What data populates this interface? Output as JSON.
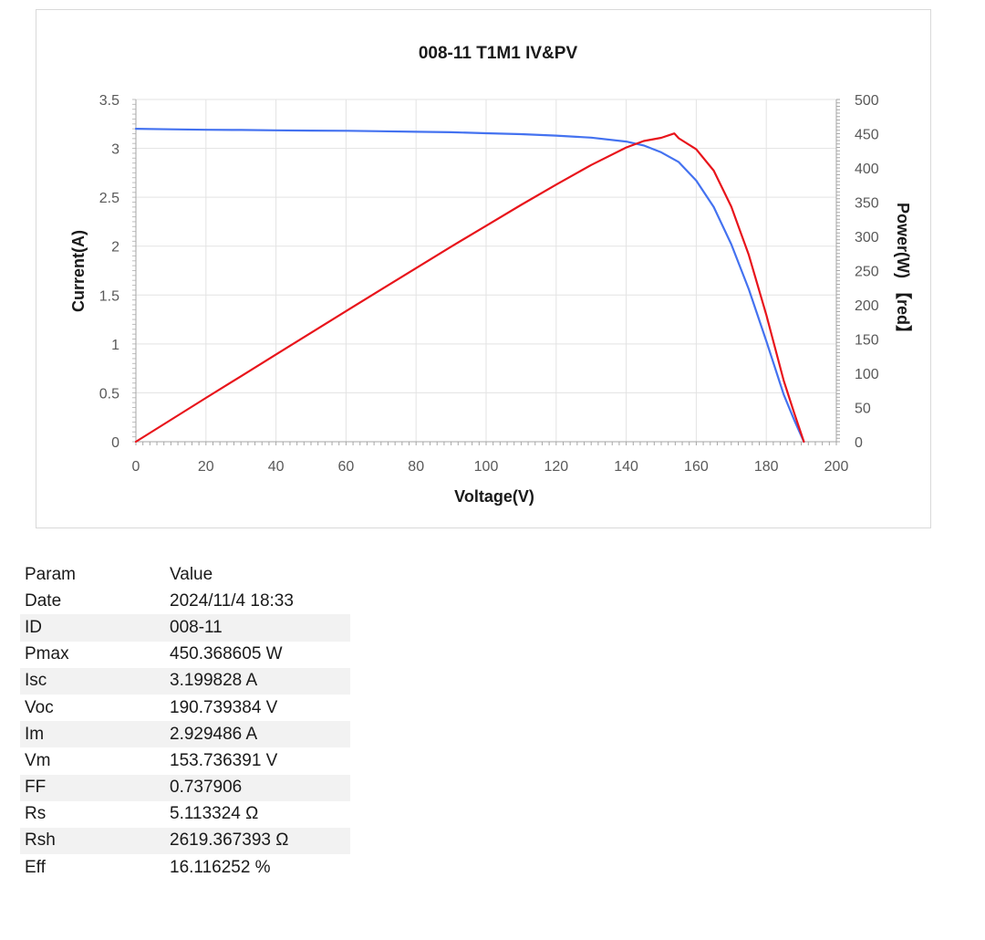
{
  "chart_data": {
    "type": "line",
    "title": "008-11 T1M1 IV&PV",
    "xlabel": "Voltage(V)",
    "ylabel": "Current(A)",
    "y2label": "Power(W) 【red】",
    "xlim": [
      0,
      200
    ],
    "ylim": [
      0,
      3.5
    ],
    "y2lim": [
      0,
      500
    ],
    "x_ticks": [
      "0",
      "20",
      "40",
      "60",
      "80",
      "100",
      "120",
      "140",
      "160",
      "180",
      "200"
    ],
    "y_ticks": [
      "0",
      "0.5",
      "1",
      "1.5",
      "2",
      "2.5",
      "3",
      "3.5"
    ],
    "y2_ticks": [
      "0",
      "50",
      "100",
      "150",
      "200",
      "250",
      "300",
      "350",
      "400",
      "450",
      "500"
    ],
    "grid": true,
    "series": [
      {
        "name": "Current(A)",
        "axis": "left",
        "color": "#4472f0",
        "x": [
          0,
          10,
          20,
          30,
          40,
          50,
          60,
          70,
          80,
          90,
          100,
          110,
          120,
          130,
          140,
          145,
          150,
          155,
          160,
          165,
          170,
          175,
          180,
          185,
          188,
          190.74
        ],
        "y": [
          3.2,
          3.195,
          3.19,
          3.188,
          3.185,
          3.182,
          3.18,
          3.175,
          3.17,
          3.165,
          3.155,
          3.145,
          3.13,
          3.11,
          3.07,
          3.03,
          2.96,
          2.86,
          2.67,
          2.4,
          2.02,
          1.56,
          1.03,
          0.48,
          0.22,
          0
        ]
      },
      {
        "name": "Power(W)",
        "axis": "right",
        "color": "#e8141b",
        "x": [
          0,
          10,
          20,
          30,
          40,
          50,
          60,
          70,
          80,
          90,
          100,
          110,
          120,
          130,
          140,
          145,
          150,
          153.74,
          155,
          160,
          165,
          170,
          175,
          180,
          185,
          188,
          190.74
        ],
        "y": [
          0,
          32,
          64,
          95.6,
          127.4,
          159.1,
          190.8,
          222.3,
          253.6,
          284.9,
          315.5,
          346,
          375.6,
          404.3,
          429.8,
          439.4,
          444,
          450.4,
          443.3,
          427.2,
          396,
          343.4,
          273,
          185.4,
          88.8,
          41.4,
          0
        ]
      }
    ]
  },
  "params": {
    "header": {
      "param": "Param",
      "value": "Value"
    },
    "rows": [
      {
        "param": "Date",
        "value": "2024/11/4 18:33"
      },
      {
        "param": "ID",
        "value": "008-11"
      },
      {
        "param": "Pmax",
        "value": "450.368605 W"
      },
      {
        "param": "Isc",
        "value": "3.199828 A"
      },
      {
        "param": "Voc",
        "value": "190.739384 V"
      },
      {
        "param": "Im",
        "value": "2.929486 A"
      },
      {
        "param": "Vm",
        "value": "153.736391 V"
      },
      {
        "param": "FF",
        "value": "0.737906"
      },
      {
        "param": "Rs",
        "value": "5.113324 Ω"
      },
      {
        "param": "Rsh",
        "value": "2619.367393 Ω"
      },
      {
        "param": "Eff",
        "value": "16.116252 %"
      }
    ]
  }
}
